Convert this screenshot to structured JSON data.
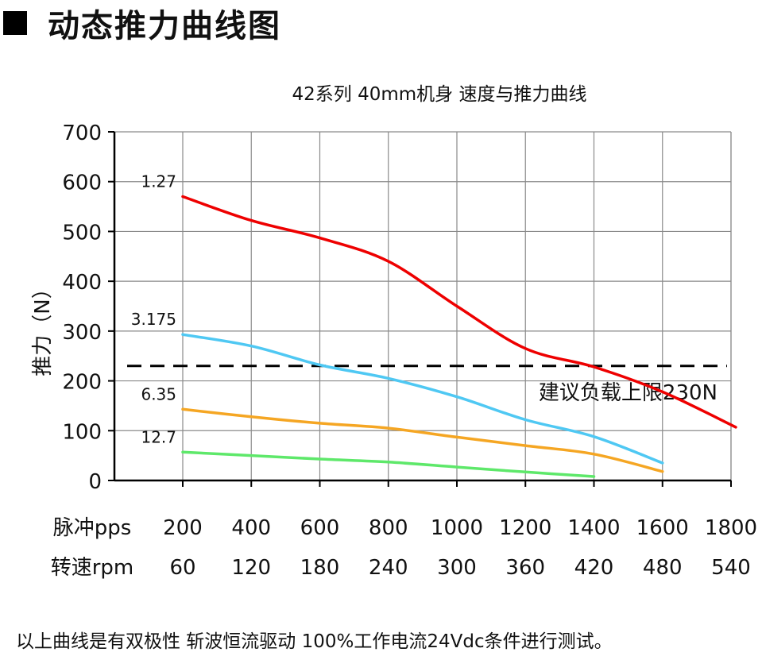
{
  "heading": {
    "marker": "■",
    "title": "动态推力曲线图"
  },
  "chart_data": {
    "type": "line",
    "title": "42系列 40mm机身 速度与推力曲线",
    "ylabel": "推力（N）",
    "ylim": [
      0,
      700
    ],
    "yticks": [
      0,
      100,
      200,
      300,
      400,
      500,
      600,
      700
    ],
    "xlim": [
      200,
      1800
    ],
    "x_rows": [
      {
        "label": "脉冲pps",
        "values": [
          "200",
          "400",
          "600",
          "800",
          "1000",
          "1200",
          "1400",
          "1600",
          "1800"
        ]
      },
      {
        "label": "转速rpm",
        "values": [
          "60",
          "120",
          "180",
          "240",
          "300",
          "360",
          "420",
          "480",
          "540"
        ]
      }
    ],
    "grid": true,
    "series": [
      {
        "name": "1.27",
        "color": "#ee0000",
        "x": [
          200,
          400,
          600,
          800,
          1000,
          1200,
          1400,
          1600,
          1800
        ],
        "y": [
          570,
          522,
          487,
          440,
          350,
          265,
          228,
          178,
          107
        ]
      },
      {
        "name": "3.175",
        "color": "#4fc8f3",
        "x": [
          200,
          400,
          600,
          800,
          1000,
          1200,
          1400,
          1600
        ],
        "y": [
          293,
          270,
          232,
          205,
          168,
          122,
          88,
          35
        ]
      },
      {
        "name": "6.35",
        "color": "#f5a623",
        "x": [
          200,
          400,
          600,
          800,
          1000,
          1200,
          1400,
          1600
        ],
        "y": [
          143,
          128,
          115,
          105,
          87,
          70,
          53,
          18
        ]
      },
      {
        "name": "12.7",
        "color": "#5ee86a",
        "x": [
          200,
          400,
          600,
          800,
          1000,
          1200,
          1400
        ],
        "y": [
          57,
          50,
          43,
          37,
          27,
          17,
          8
        ]
      }
    ],
    "reference_line": {
      "value": 230,
      "label": "建议负载上限230N",
      "style": "dashed",
      "color": "#000000"
    }
  },
  "footer": {
    "note": "以上曲线是有双极性 斩波恒流驱动 100%工作电流24Vdc条件进行测试。"
  }
}
